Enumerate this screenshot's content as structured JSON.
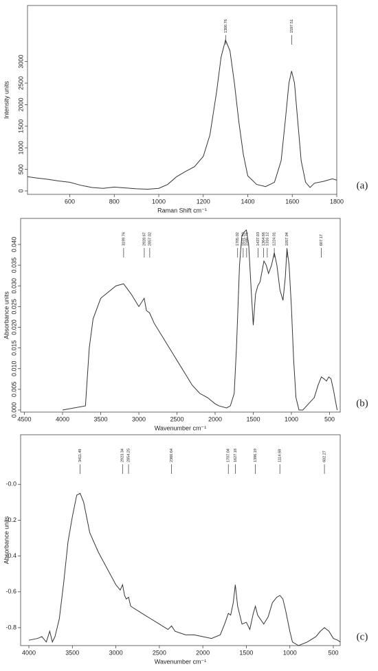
{
  "chart_data": [
    {
      "type": "line",
      "panel_label": "(a)",
      "x_label": "Raman Shift cm⁻¹",
      "y_label": "Intensity units",
      "xlim": [
        410,
        1800
      ],
      "ylim": [
        -80,
        4300
      ],
      "xticks": [
        600,
        800,
        1000,
        1200,
        1400,
        1600,
        1800
      ],
      "yticks": [
        0,
        500,
        1000,
        1500,
        2000,
        2500,
        3000
      ],
      "annotations": [
        1300.76,
        1597.51
      ],
      "color": "#333333",
      "x": [
        410,
        450,
        500,
        550,
        600,
        650,
        700,
        750,
        800,
        850,
        900,
        950,
        1000,
        1040,
        1080,
        1120,
        1160,
        1200,
        1230,
        1260,
        1280,
        1300,
        1320,
        1340,
        1360,
        1380,
        1400,
        1440,
        1480,
        1520,
        1550,
        1570,
        1585,
        1597,
        1610,
        1625,
        1640,
        1660,
        1680,
        1700,
        1740,
        1780,
        1800
      ],
      "values": [
        330,
        300,
        270,
        230,
        200,
        130,
        80,
        60,
        90,
        70,
        50,
        40,
        60,
        150,
        330,
        450,
        560,
        800,
        1300,
        2300,
        3100,
        3500,
        3250,
        2500,
        1600,
        850,
        350,
        150,
        100,
        200,
        700,
        1700,
        2500,
        2780,
        2500,
        1600,
        700,
        200,
        80,
        180,
        220,
        280,
        250
      ]
    },
    {
      "type": "line",
      "panel_label": "(b)",
      "x_label": "Wavenumber cm⁻¹",
      "y_label": "Absorbance units",
      "xlim": [
        4550,
        360
      ],
      "ylim": [
        -0.0005,
        0.0463
      ],
      "xticks": [
        4500,
        4000,
        3500,
        3000,
        2500,
        2000,
        1500,
        1000,
        500
      ],
      "yticks": [
        {
          "value": 0,
          "label": "0.000"
        },
        {
          "value": 0.005,
          "label": "0.005"
        },
        {
          "value": 0.01,
          "label": "0.010"
        },
        {
          "value": 0.015,
          "label": "0.015"
        },
        {
          "value": 0.02,
          "label": "0.020"
        },
        {
          "value": 0.025,
          "label": "0.025"
        },
        {
          "value": 0.03,
          "label": "0.030"
        },
        {
          "value": 0.035,
          "label": "0.035"
        },
        {
          "value": 0.04,
          "label": "0.040"
        }
      ],
      "annotations": [
        3199.76,
        2928.67,
        2857.02,
        1705.02,
        1631.99,
        1586.75,
        1437.03,
        1364.66,
        1316.12,
        1224.01,
        1057.94,
        607.17
      ],
      "color": "#333333",
      "x": [
        4000,
        3700,
        3650,
        3600,
        3500,
        3400,
        3300,
        3200,
        3100,
        3000,
        2930,
        2900,
        2860,
        2800,
        2700,
        2600,
        2500,
        2400,
        2300,
        2200,
        2100,
        2000,
        1950,
        1850,
        1800,
        1750,
        1720,
        1700,
        1680,
        1650,
        1620,
        1590,
        1560,
        1530,
        1500,
        1470,
        1440,
        1410,
        1380,
        1360,
        1330,
        1300,
        1260,
        1224,
        1190,
        1150,
        1110,
        1080,
        1058,
        1030,
        1000,
        970,
        940,
        900,
        850,
        800,
        750,
        700,
        650,
        607,
        570,
        540,
        510,
        480,
        450,
        420,
        400
      ],
      "values": [
        0.0,
        0.001,
        0.015,
        0.022,
        0.027,
        0.0285,
        0.03,
        0.0305,
        0.028,
        0.025,
        0.027,
        0.024,
        0.0235,
        0.021,
        0.018,
        0.015,
        0.012,
        0.009,
        0.006,
        0.004,
        0.003,
        0.0015,
        0.001,
        0.0005,
        0.001,
        0.004,
        0.015,
        0.025,
        0.035,
        0.042,
        0.043,
        0.0435,
        0.04,
        0.03,
        0.0205,
        0.028,
        0.03,
        0.031,
        0.034,
        0.036,
        0.035,
        0.033,
        0.035,
        0.038,
        0.035,
        0.029,
        0.0265,
        0.032,
        0.039,
        0.035,
        0.025,
        0.012,
        0.003,
        0.0,
        0.0,
        0.001,
        0.002,
        0.003,
        0.006,
        0.008,
        0.0075,
        0.007,
        0.008,
        0.0075,
        0.005,
        0.002,
        0.0
      ]
    },
    {
      "type": "line",
      "panel_label": "(c)",
      "x_label": "Wavenumber cm⁻¹",
      "y_label": "Absorbance units",
      "xlim": [
        4095,
        421
      ],
      "ylim": [
        -0.9,
        0.277
      ],
      "xticks": [
        4000,
        3500,
        3000,
        2500,
        2000,
        1500,
        1000,
        500
      ],
      "yticks": [
        {
          "value": 0,
          "label": "-0.0"
        },
        -0.2,
        -0.4,
        -0.6,
        -0.8
      ],
      "annotations": [
        3411.49,
        2923.34,
        2854.25,
        2360.64,
        1707.04,
        1627.18,
        1396.19,
        1114.68,
        602.27
      ],
      "color": "#333333",
      "x": [
        4000,
        3900,
        3850,
        3800,
        3760,
        3730,
        3700,
        3650,
        3600,
        3550,
        3500,
        3450,
        3411,
        3370,
        3300,
        3200,
        3100,
        3000,
        2950,
        2923,
        2900,
        2880,
        2854,
        2830,
        2700,
        2600,
        2500,
        2400,
        2360,
        2320,
        2200,
        2100,
        2000,
        1900,
        1800,
        1750,
        1707,
        1680,
        1650,
        1627,
        1600,
        1550,
        1500,
        1460,
        1420,
        1396,
        1370,
        1300,
        1250,
        1200,
        1150,
        1114,
        1080,
        1050,
        1000,
        970,
        900,
        800,
        700,
        650,
        602,
        550,
        500,
        450,
        420
      ],
      "values": [
        -0.87,
        -0.86,
        -0.85,
        -0.88,
        -0.82,
        -0.88,
        -0.85,
        -0.75,
        -0.55,
        -0.32,
        -0.18,
        -0.06,
        -0.05,
        -0.1,
        -0.27,
        -0.38,
        -0.47,
        -0.56,
        -0.59,
        -0.56,
        -0.62,
        -0.64,
        -0.63,
        -0.68,
        -0.72,
        -0.75,
        -0.78,
        -0.81,
        -0.79,
        -0.82,
        -0.84,
        -0.84,
        -0.85,
        -0.86,
        -0.84,
        -0.78,
        -0.72,
        -0.73,
        -0.66,
        -0.56,
        -0.68,
        -0.78,
        -0.77,
        -0.81,
        -0.72,
        -0.68,
        -0.73,
        -0.78,
        -0.74,
        -0.66,
        -0.63,
        -0.62,
        -0.64,
        -0.7,
        -0.82,
        -0.88,
        -0.9,
        -0.88,
        -0.85,
        -0.82,
        -0.8,
        -0.82,
        -0.86,
        -0.87,
        -0.88
      ]
    }
  ]
}
